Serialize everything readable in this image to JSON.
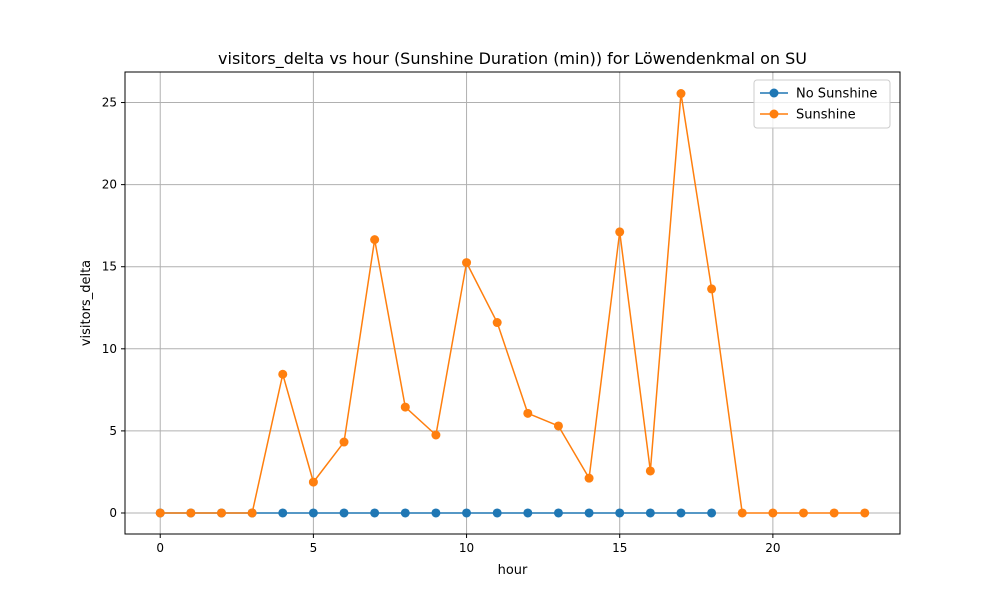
{
  "chart_data": {
    "type": "line",
    "title": "visitors_delta vs hour (Sunshine Duration (min)) for Löwendenkmal on SU",
    "xlabel": "hour",
    "ylabel": "visitors_delta",
    "xlim": [
      -1.15,
      24.15
    ],
    "ylim": [
      -1.28,
      26.86
    ],
    "xticks": [
      0,
      5,
      10,
      15,
      20
    ],
    "yticks": [
      0,
      5,
      10,
      15,
      20,
      25
    ],
    "grid": true,
    "legend_position": "upper-right",
    "series": [
      {
        "name": "No Sunshine",
        "color": "#1f77b4",
        "x": [
          0,
          1,
          2,
          3,
          4,
          5,
          6,
          7,
          8,
          9,
          10,
          11,
          12,
          13,
          14,
          15,
          16,
          17,
          18
        ],
        "y": [
          0,
          0,
          0,
          0,
          0,
          0,
          0,
          0,
          0,
          0,
          0,
          0,
          0,
          0,
          0,
          0,
          0,
          0,
          0
        ]
      },
      {
        "name": "Sunshine",
        "color": "#ff7f0e",
        "x": [
          0,
          1,
          2,
          3,
          4,
          5,
          6,
          7,
          8,
          9,
          10,
          11,
          12,
          13,
          14,
          15,
          16,
          17,
          18,
          19,
          20,
          21,
          22,
          23
        ],
        "y": [
          0,
          0,
          0,
          0,
          8.45,
          1.88,
          4.32,
          16.65,
          6.45,
          4.75,
          15.25,
          11.6,
          6.07,
          5.3,
          2.12,
          17.12,
          2.56,
          25.55,
          13.65,
          0,
          0,
          0,
          0,
          0
        ]
      }
    ]
  }
}
